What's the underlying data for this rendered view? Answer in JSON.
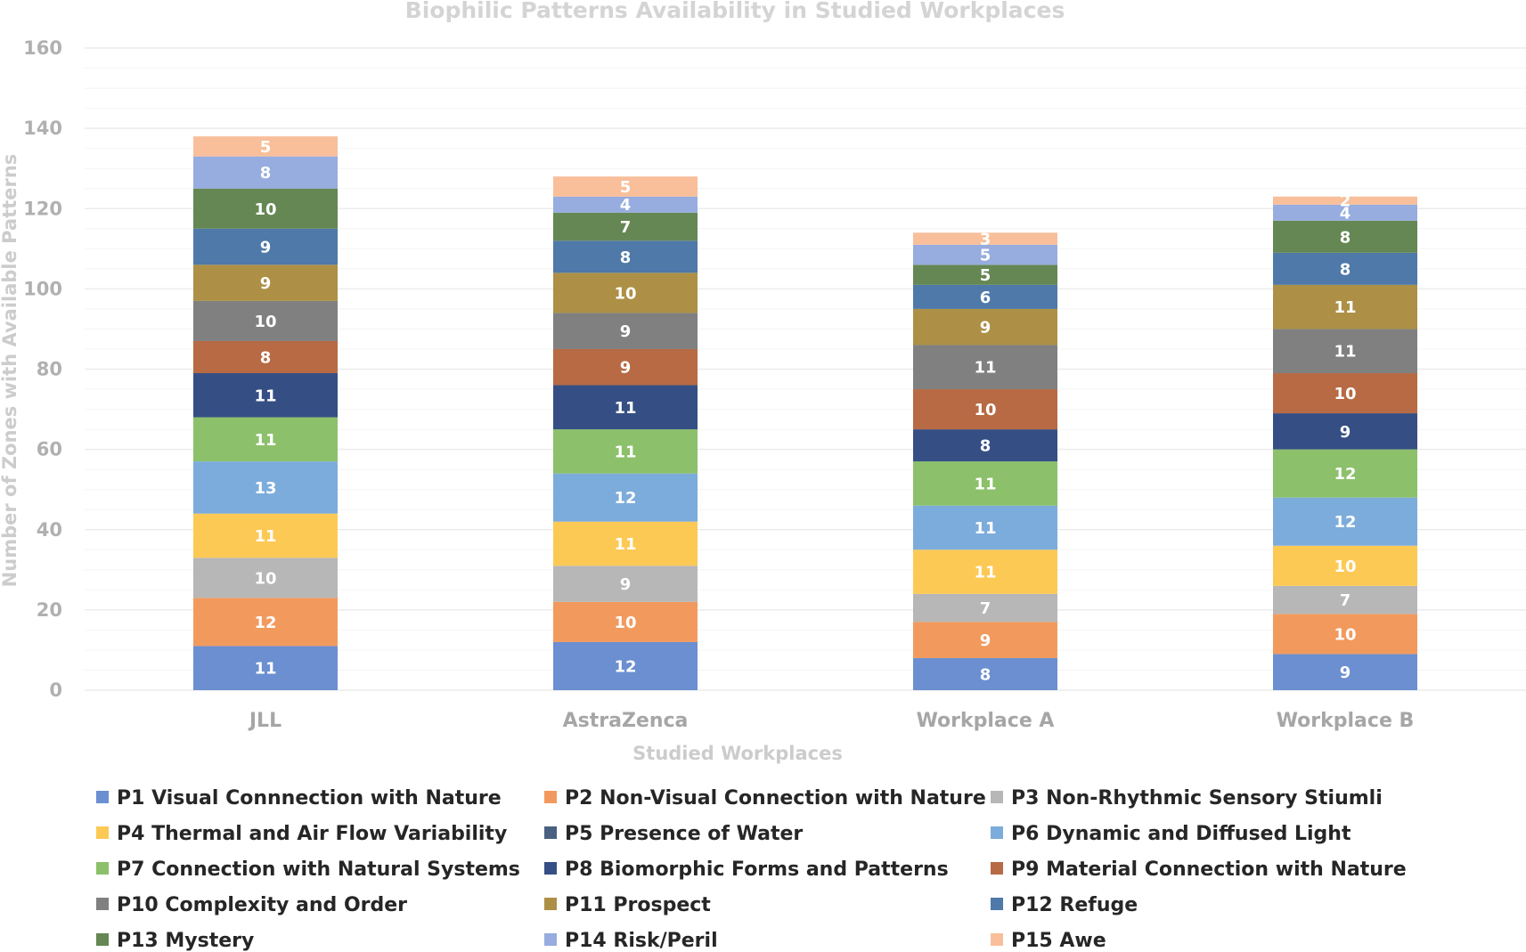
{
  "chart_data": {
    "type": "bar",
    "stacked": true,
    "title": "Biophilic Patterns Availability in Studied Workplaces",
    "xlabel": "Studied Workplaces",
    "ylabel": "Number of Zones with Available Patterns",
    "ylim": [
      0,
      160
    ],
    "yticks": [
      0,
      20,
      40,
      60,
      80,
      100,
      120,
      140,
      160
    ],
    "grid": true,
    "legend_position": "bottom",
    "categories": [
      "JLL",
      "AstraZenca",
      "Workplace A",
      "Workplace B"
    ],
    "series": [
      {
        "name": "P1 Visual Connnection with Nature",
        "color": "#6b8fd0",
        "values": [
          11,
          12,
          8,
          9
        ]
      },
      {
        "name": "P2 Non-Visual Connection with Nature",
        "color": "#f29a5e",
        "values": [
          12,
          10,
          9,
          10
        ]
      },
      {
        "name": "P3 Non-Rhythmic Sensory Stiumli",
        "color": "#b7b7b7",
        "values": [
          10,
          9,
          7,
          7
        ]
      },
      {
        "name": "P4 Thermal and Air Flow Variability",
        "color": "#fdc955",
        "values": [
          11,
          11,
          11,
          10
        ]
      },
      {
        "name": "P5 Presence of Water",
        "color": "#4a6080",
        "values": [
          0,
          0,
          0,
          0
        ]
      },
      {
        "name": "P6 Dynamic and Diffused Light",
        "color": "#7cacdb",
        "values": [
          13,
          12,
          11,
          12
        ]
      },
      {
        "name": "P7 Connection with Natural Systems",
        "color": "#8cc06a",
        "values": [
          11,
          11,
          11,
          12
        ]
      },
      {
        "name": "P8 Biomorphic Forms and Patterns",
        "color": "#354f85",
        "values": [
          11,
          11,
          8,
          9
        ]
      },
      {
        "name": "P9 Material Connection with Nature",
        "color": "#b76a43",
        "values": [
          8,
          9,
          10,
          10
        ]
      },
      {
        "name": "P10 Complexity and Order",
        "color": "#808080",
        "values": [
          10,
          9,
          11,
          11
        ]
      },
      {
        "name": "P11 Prospect",
        "color": "#ad9046",
        "values": [
          9,
          10,
          9,
          11
        ]
      },
      {
        "name": "P12 Refuge",
        "color": "#4e79a8",
        "values": [
          9,
          8,
          6,
          8
        ]
      },
      {
        "name": "P13 Mystery",
        "color": "#658753",
        "values": [
          10,
          7,
          5,
          8
        ]
      },
      {
        "name": "P14 Risk/Peril",
        "color": "#97acdf",
        "values": [
          8,
          4,
          5,
          4
        ]
      },
      {
        "name": "P15 Awe",
        "color": "#f8bf9a",
        "values": [
          5,
          5,
          3,
          2
        ]
      }
    ]
  }
}
